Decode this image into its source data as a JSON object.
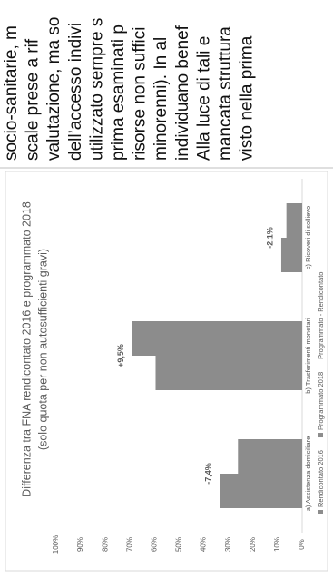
{
  "chart_data": {
    "type": "bar",
    "title": "Differenza tra FNA rendicontato 2016 e programmato 2018",
    "subtitle": "(solo quota per non autosufficienti gravi)",
    "categories": [
      "a) Assistenza domiciliare",
      "b) Trasferimenti monetari",
      "c) Ricoveri di sollievo"
    ],
    "series": [
      {
        "name": "Rendicontato 2016",
        "color": "#8c8c8c",
        "values": [
          33.5,
          59.6,
          8.5
        ]
      },
      {
        "name": "Programmato 2018",
        "color": "#8c8c8c",
        "values": [
          26.1,
          69.1,
          6.4
        ]
      },
      {
        "name": "Programmato - Rendicontato",
        "values": [
          -7.4,
          9.5,
          -2.1
        ],
        "value_labels": [
          "-7,4%",
          "+9,5%",
          "-2,1%"
        ]
      }
    ],
    "ylim": [
      0,
      100
    ],
    "yticks": [
      {
        "value": 0,
        "label": "0%"
      },
      {
        "value": 10,
        "label": "10%"
      },
      {
        "value": 20,
        "label": "20%"
      },
      {
        "value": 30,
        "label": "30%"
      },
      {
        "value": 40,
        "label": "40%"
      },
      {
        "value": 50,
        "label": "50%"
      },
      {
        "value": 60,
        "label": "60%"
      },
      {
        "value": 70,
        "label": "70%"
      },
      {
        "value": 80,
        "label": "80%"
      },
      {
        "value": 90,
        "label": "90%"
      },
      {
        "value": 100,
        "label": "100%"
      }
    ],
    "grid": false
  },
  "text": {
    "lines": [
      "socio-sanitarie, m",
      "scale prese a rif",
      "valutazione, ma so",
      "dell’accesso indivi",
      "utilizzato sempre s",
      "prima esaminati p",
      "risorse non suffici",
      "minorenni). In al",
      "individuano benef",
      "Alla luce di tali e",
      "mancata struttura",
      "visto nella prima"
    ]
  }
}
